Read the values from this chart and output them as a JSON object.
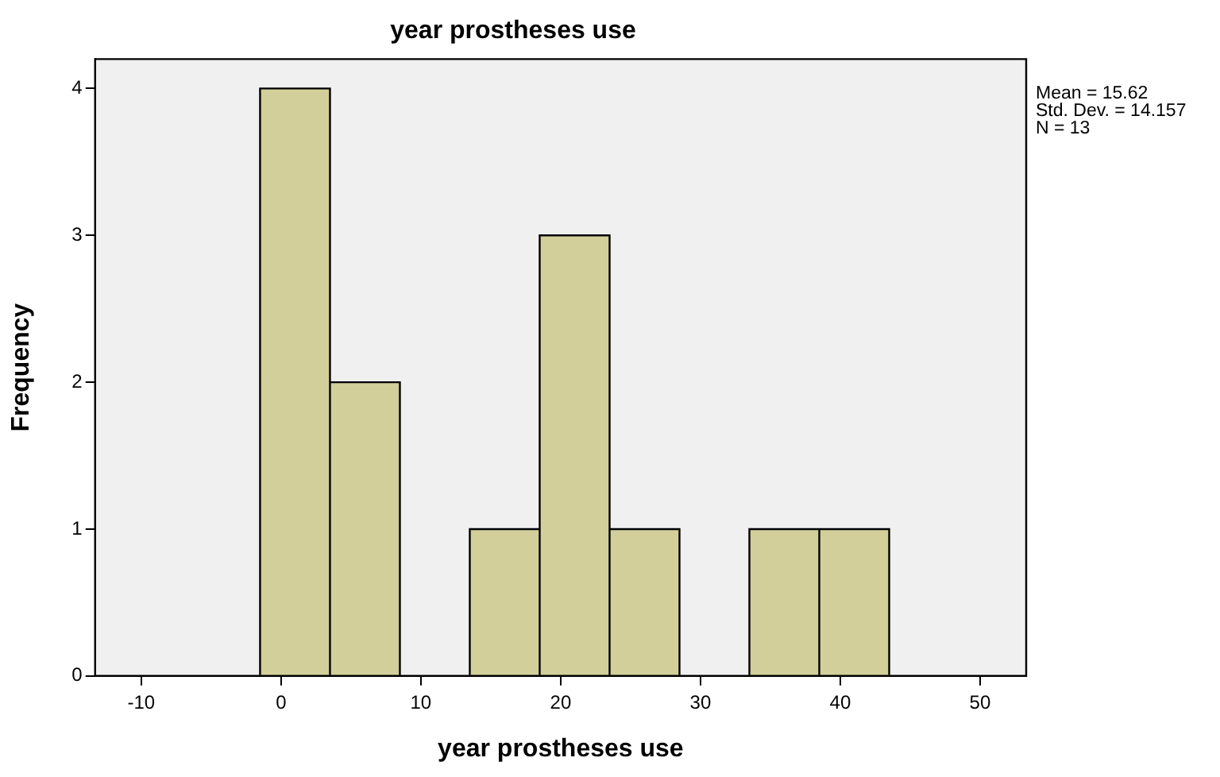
{
  "chart_data": {
    "type": "histogram",
    "title": "year prostheses use",
    "xlabel": "year prostheses use",
    "ylabel": "Frequency",
    "bins": [
      -1.5,
      3.5,
      8.5,
      13.5,
      18.5,
      23.5,
      28.5,
      33.5,
      38.5,
      43.5
    ],
    "values": [
      4,
      2,
      0,
      1,
      3,
      1,
      0,
      1,
      1
    ],
    "color": "#d3cf9a",
    "xlim": [
      -13.3,
      53.3
    ],
    "xticks": [
      -10,
      0,
      10,
      20,
      30,
      40,
      50
    ],
    "ylim": [
      0,
      4.2
    ],
    "yticks": [
      0,
      1,
      2,
      3,
      4
    ],
    "grid": false,
    "legend": false,
    "annotations": [
      "Mean = 15.62",
      "Std. Dev. = 14.157",
      "N = 13"
    ]
  }
}
